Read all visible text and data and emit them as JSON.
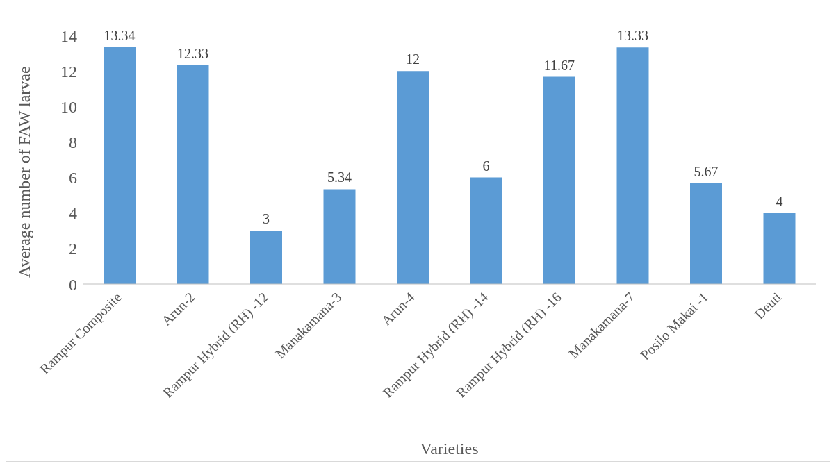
{
  "chart_data": {
    "type": "bar",
    "xlabel": "Varieties",
    "ylabel": "Average number of FAW larvae",
    "categories": [
      "Rampur Composite",
      "Arun-2",
      "Rampur Hybrid (RH) -12",
      "Manakamana-3",
      "Arun-4",
      "Rampur Hybrid (RH) -14",
      "Rampur Hybrid (RH) -16",
      "Manakamana-7",
      "Posilo Makai -1",
      "Deuti"
    ],
    "values": [
      13.34,
      12.33,
      3,
      5.34,
      12,
      6,
      11.67,
      13.33,
      5.67,
      4
    ],
    "color": "#5b9bd5",
    "ylim": [
      0,
      14
    ],
    "yticks": [
      0,
      2,
      4,
      6,
      8,
      10,
      12,
      14
    ],
    "grid": false,
    "data_labels": true,
    "legend": false
  }
}
